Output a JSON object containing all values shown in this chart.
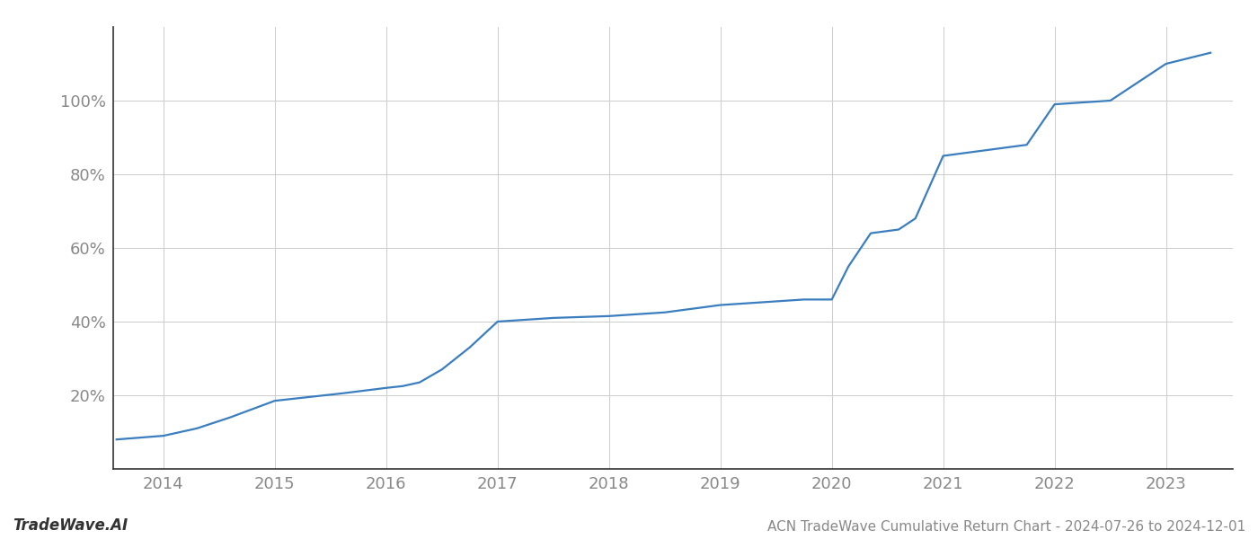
{
  "title": "ACN TradeWave Cumulative Return Chart - 2024-07-26 to 2024-12-01",
  "watermark": "TradeWave.AI",
  "line_color": "#3a7ebf",
  "background_color": "#ffffff",
  "grid_color": "#cccccc",
  "x_years": [
    2013.58,
    2014.0,
    2014.3,
    2014.6,
    2015.0,
    2015.3,
    2015.6,
    2016.0,
    2016.15,
    2016.3,
    2016.5,
    2016.75,
    2017.0,
    2017.5,
    2018.0,
    2018.5,
    2019.0,
    2019.25,
    2019.5,
    2019.75,
    2020.0,
    2020.15,
    2020.35,
    2020.6,
    2020.75,
    2021.0,
    2021.25,
    2021.5,
    2021.75,
    2022.0,
    2022.5,
    2023.0,
    2023.4
  ],
  "y_values": [
    8,
    9,
    11,
    14,
    18.5,
    19.5,
    20.5,
    22,
    22.5,
    23.5,
    27,
    33,
    40,
    41,
    41.5,
    42.5,
    44.5,
    45,
    45.5,
    46,
    46,
    55,
    64,
    65,
    68,
    85,
    86,
    87,
    88,
    99,
    100,
    110,
    113
  ],
  "yticks": [
    20,
    40,
    60,
    80,
    100
  ],
  "ytick_labels": [
    "20%",
    "40%",
    "60%",
    "80%",
    "100%"
  ],
  "xticks": [
    2014,
    2015,
    2016,
    2017,
    2018,
    2019,
    2020,
    2021,
    2022,
    2023
  ],
  "xlim": [
    2013.55,
    2023.6
  ],
  "ylim": [
    0,
    120
  ],
  "left_spine_color": "#333333",
  "bottom_spine_color": "#333333",
  "axis_color": "#888888",
  "tick_color": "#888888",
  "title_fontsize": 11,
  "watermark_fontsize": 12,
  "tick_fontsize": 13,
  "line_width": 1.6
}
